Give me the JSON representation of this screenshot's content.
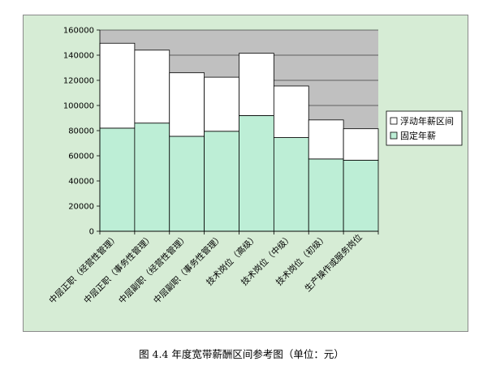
{
  "caption": "图 4.4   年度宽带薪酬区间参考图（单位：元）",
  "colors": {
    "panel_bg": "#d6ecd5",
    "plot_bg": "#c0c0c0",
    "fixed_fill": "#bdeed6",
    "float_fill": "#ffffff",
    "border": "#000000"
  },
  "chart_data": {
    "type": "bar",
    "stacked": true,
    "categories": [
      "中层正职（经营性管理）",
      "中层正职（事务性管理）",
      "中层副职（经营性管理）",
      "中层副职（事务性管理）",
      "技术岗位（高级）",
      "技术岗位（中级）",
      "技术岗位（初级）",
      "生产操作或服务岗位"
    ],
    "series": [
      {
        "name": "固定年薪",
        "values": [
          82000,
          86000,
          75500,
          79500,
          92000,
          74500,
          57500,
          56500
        ]
      },
      {
        "name": "浮动年薪区间",
        "values": [
          67500,
          58000,
          50500,
          43000,
          49500,
          41000,
          31000,
          25000
        ]
      }
    ],
    "ylim": [
      0,
      160000
    ],
    "yticks": [
      "0",
      "20000",
      "40000",
      "60000",
      "80000",
      "100000",
      "120000",
      "140000",
      "160000"
    ],
    "grid": true,
    "legend_position": "right",
    "legend": [
      "浮动年薪区间",
      "固定年薪"
    ]
  }
}
